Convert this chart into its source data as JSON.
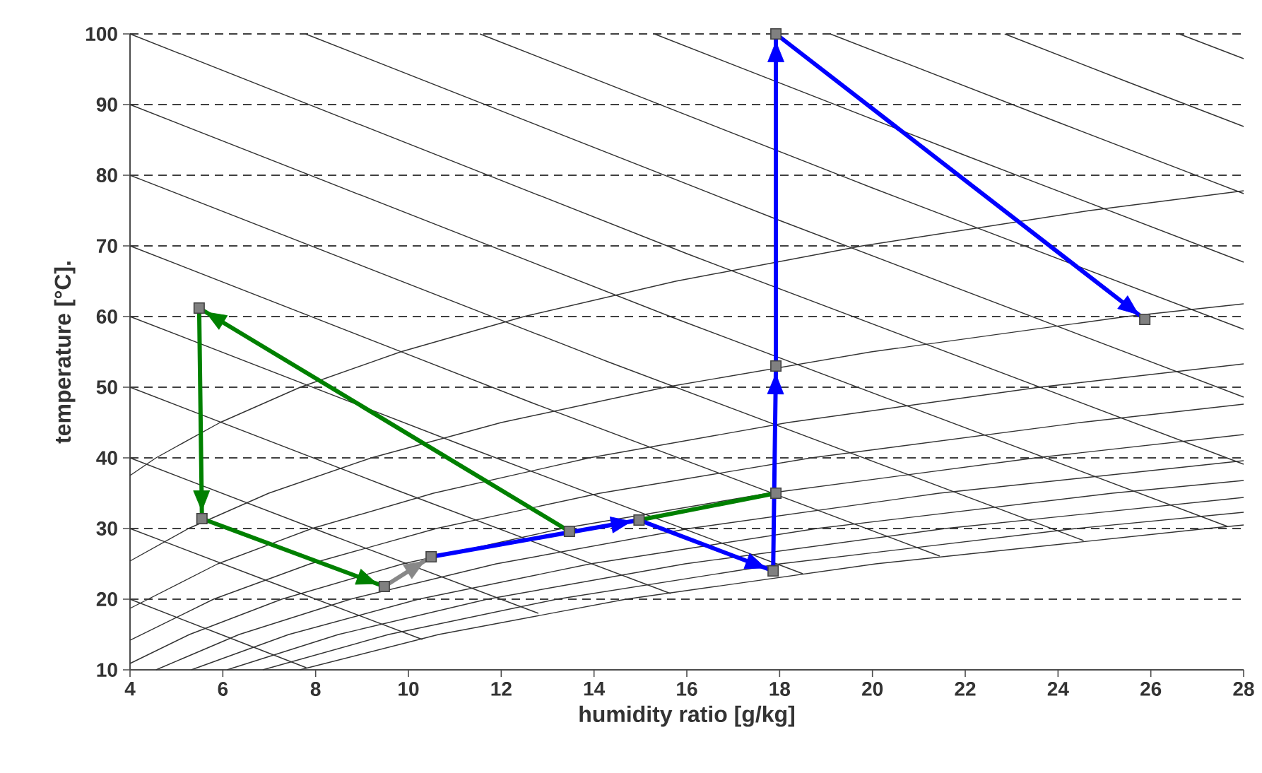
{
  "chart_data": {
    "type": "line",
    "xlabel": "humidity ratio [g/kg]",
    "ylabel": "temperature [°C].",
    "xlim": [
      4,
      28
    ],
    "ylim": [
      10,
      100
    ],
    "xticks": [
      4,
      6,
      8,
      10,
      12,
      14,
      16,
      18,
      20,
      22,
      24,
      26,
      28
    ],
    "yticks": [
      10,
      20,
      30,
      40,
      50,
      60,
      70,
      80,
      90,
      100
    ],
    "grid": "y",
    "color": "#333333",
    "series": [
      {
        "line_style": "solid",
        "x": [
          7.66,
          10.65,
          14.69,
          20.07,
          27.21,
          28
        ],
        "values": [
          10,
          15,
          20,
          25,
          30,
          30.5
        ]
      },
      {
        "line_style": "solid",
        "x": [
          6.86,
          9.57,
          13.2,
          18.01,
          24.38,
          28
        ],
        "values": [
          10,
          15,
          20,
          25,
          30,
          32.3
        ]
      },
      {
        "line_style": "solid",
        "x": [
          6.09,
          8.49,
          11.7,
          15.96,
          21.57,
          28
        ],
        "values": [
          10,
          15,
          20,
          25,
          30,
          34.4
        ]
      },
      {
        "line_style": "solid",
        "x": [
          5.32,
          7.42,
          10.22,
          13.92,
          18.8,
          25.17,
          28
        ],
        "values": [
          10,
          15,
          20,
          25,
          30,
          35,
          36.8
        ]
      },
      {
        "line_style": "solid",
        "x": [
          4.56,
          6.35,
          8.75,
          11.89,
          16.05,
          21.44,
          28
        ],
        "values": [
          10,
          15,
          20,
          25,
          30,
          35,
          39.6
        ]
      },
      {
        "line_style": "solid",
        "x": [
          4,
          5.28,
          7.27,
          9.88,
          13.31,
          17.77,
          23.51,
          28
        ],
        "values": [
          10.9,
          15,
          20,
          25,
          30,
          35,
          40,
          43.3
        ]
      },
      {
        "line_style": "solid",
        "x": [
          4,
          5.8,
          7.88,
          10.6,
          14.13,
          18.68,
          24.48,
          28
        ],
        "values": [
          14.2,
          20,
          25,
          30,
          35,
          40,
          45,
          47.6
        ]
      },
      {
        "line_style": "solid",
        "x": [
          4,
          5.89,
          7.92,
          10.54,
          13.9,
          18.18,
          23.6,
          28
        ],
        "values": [
          18.7,
          25,
          30,
          35,
          40,
          45,
          50,
          53.3
        ]
      },
      {
        "line_style": "solid",
        "x": [
          4,
          5.26,
          6.99,
          9.2,
          12.0,
          15.54,
          19.97,
          25.47,
          28
        ],
        "values": [
          25.4,
          30,
          35,
          40,
          45,
          50,
          55,
          60,
          61.8
        ]
      },
      {
        "line_style": "solid",
        "x": [
          4,
          4.56,
          5.94,
          7.67,
          9.83,
          12.49,
          15.76,
          19.78,
          24.68,
          28
        ],
        "values": [
          37.5,
          40,
          45,
          50,
          55,
          60,
          65,
          70,
          75,
          77.8
        ]
      },
      {
        "line_style": "solid",
        "x": [
          4,
          6,
          7.8
        ],
        "values": [
          20,
          14.9,
          10.3
        ]
      },
      {
        "line_style": "solid",
        "x": [
          4,
          7,
          10.3
        ],
        "values": [
          30,
          22.5,
          14.3
        ]
      },
      {
        "line_style": "solid",
        "x": [
          4,
          8.4,
          12.8
        ],
        "values": [
          40,
          28.9,
          18
        ]
      },
      {
        "line_style": "solid",
        "x": [
          4,
          9.8,
          15.65
        ],
        "values": [
          50,
          35.3,
          20.8
        ]
      },
      {
        "line_style": "solid",
        "x": [
          4,
          11.2,
          18.5
        ],
        "values": [
          60,
          41.7,
          23.6
        ]
      },
      {
        "line_style": "solid",
        "x": [
          4,
          12.7,
          21.45
        ],
        "values": [
          70,
          47.7,
          26.1
        ]
      },
      {
        "line_style": "solid",
        "x": [
          4,
          14.3,
          24.55
        ],
        "values": [
          80,
          53.6,
          28.3
        ]
      },
      {
        "line_style": "solid",
        "x": [
          4,
          15.8,
          27.65
        ],
        "values": [
          90,
          59.6,
          30.3
        ]
      },
      {
        "line_style": "solid",
        "x": [
          4,
          16,
          28
        ],
        "values": [
          100,
          68.9,
          39.1
        ]
      },
      {
        "line_style": "solid",
        "x": [
          7.78,
          18,
          28
        ],
        "values": [
          100,
          73.6,
          48.6
        ]
      },
      {
        "line_style": "solid",
        "x": [
          11.54,
          20,
          28
        ],
        "values": [
          100,
          78.2,
          58.2
        ]
      },
      {
        "line_style": "solid",
        "x": [
          15.3,
          22,
          28
        ],
        "values": [
          100,
          82.8,
          67.7
        ]
      },
      {
        "line_style": "solid",
        "x": [
          19.09,
          24,
          28
        ],
        "values": [
          100,
          87.5,
          77.4
        ]
      },
      {
        "line_style": "solid",
        "x": [
          22.85,
          25.5,
          28
        ],
        "values": [
          100,
          93.2,
          86.9
        ]
      },
      {
        "line_style": "solid",
        "x": [
          26.61,
          28
        ],
        "values": [
          100,
          96.5
        ]
      },
      {
        "color": "#008000",
        "line_style": "solid",
        "x": [
          14.97,
          17.92
        ],
        "values": [
          31.2,
          35
        ]
      },
      {
        "color": "#008000",
        "x": [
          13.47,
          5.49,
          5.55,
          9.48
        ],
        "values": [
          29.6,
          61.2,
          31.4,
          21.8
        ]
      },
      {
        "color": "#888888",
        "x": [
          9.48,
          10.49
        ],
        "values": [
          21.8,
          26
        ]
      },
      {
        "color": "#0000ff",
        "x": [
          10.49,
          14.97,
          17.86,
          17.92,
          17.92,
          25.87
        ],
        "values": [
          26,
          31.2,
          24,
          53,
          100,
          59.6
        ]
      },
      {
        "type": "scatter",
        "marker": "square",
        "color": "#808080",
        "x": [
          5.49,
          5.55,
          9.48,
          10.49,
          13.47,
          14.97,
          17.92,
          17.86,
          17.92,
          17.92,
          25.87
        ],
        "values": [
          61.2,
          31.4,
          21.8,
          26,
          29.6,
          31.2,
          35,
          24,
          53,
          100,
          59.6
        ]
      }
    ]
  }
}
